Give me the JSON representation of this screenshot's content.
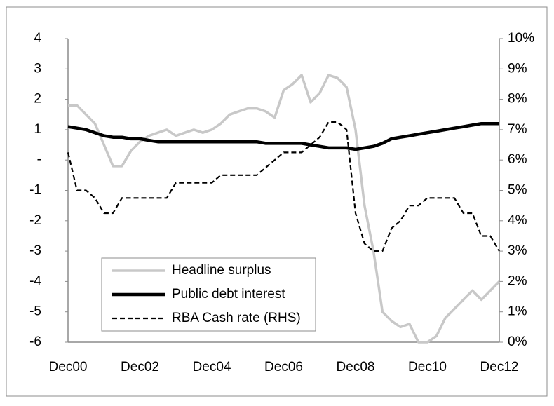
{
  "chart_data": {
    "type": "line",
    "categories": [
      "Dec00",
      null,
      null,
      null,
      null,
      null,
      null,
      null,
      "Dec02",
      null,
      null,
      null,
      null,
      null,
      null,
      null,
      "Dec04",
      null,
      null,
      null,
      null,
      null,
      null,
      null,
      "Dec06",
      null,
      null,
      null,
      null,
      null,
      null,
      null,
      "Dec08",
      null,
      null,
      null,
      null,
      null,
      null,
      null,
      "Dec10",
      null,
      null,
      null,
      null,
      null,
      null,
      null,
      "Dec12"
    ],
    "ylim": [
      -6,
      4
    ],
    "yticks": [
      -6,
      -5,
      -4,
      -3,
      -2,
      -1,
      {
        "value": 0,
        "label": "-"
      },
      1,
      2,
      3,
      4
    ],
    "y2lim": [
      0,
      10
    ],
    "y2ticks": [
      {
        "value": 0,
        "label": "0%"
      },
      {
        "value": 1,
        "label": "1%"
      },
      {
        "value": 2,
        "label": "2%"
      },
      {
        "value": 3,
        "label": "3%"
      },
      {
        "value": 4,
        "label": "4%"
      },
      {
        "value": 5,
        "label": "5%"
      },
      {
        "value": 6,
        "label": "6%"
      },
      {
        "value": 7,
        "label": "7%"
      },
      {
        "value": 8,
        "label": "8%"
      },
      {
        "value": 9,
        "label": "9%"
      },
      {
        "value": 10,
        "label": "10%"
      }
    ],
    "grid": false,
    "legend": "lower left",
    "series": [
      {
        "name": "Headline surplus",
        "color": "#c8c8c8",
        "line_width": 3.5,
        "line_style": "solid",
        "values": [
          1.8,
          1.8,
          1.5,
          1.2,
          0.5,
          -0.2,
          -0.2,
          0.3,
          0.6,
          0.8,
          0.9,
          1.0,
          0.8,
          0.9,
          1.0,
          0.9,
          1.0,
          1.2,
          1.5,
          1.6,
          1.7,
          1.7,
          1.6,
          1.4,
          2.3,
          2.5,
          2.8,
          1.9,
          2.2,
          2.8,
          2.7,
          2.4,
          1.0,
          -1.5,
          -3.0,
          -5.0,
          -5.3,
          -5.5,
          -5.4,
          -6.0,
          -6.0,
          -5.8,
          -5.2,
          -4.9,
          -4.6,
          -4.3,
          -4.6,
          -4.3,
          -4.0
        ]
      },
      {
        "name": "Public debt interest",
        "color": "#000000",
        "line_width": 4.5,
        "line_style": "solid",
        "values": [
          1.1,
          1.05,
          1.0,
          0.9,
          0.8,
          0.75,
          0.75,
          0.7,
          0.7,
          0.65,
          0.6,
          0.6,
          0.6,
          0.6,
          0.6,
          0.6,
          0.6,
          0.6,
          0.6,
          0.6,
          0.6,
          0.6,
          0.55,
          0.55,
          0.55,
          0.55,
          0.55,
          0.5,
          0.45,
          0.4,
          0.4,
          0.4,
          0.35,
          0.4,
          0.45,
          0.55,
          0.7,
          0.75,
          0.8,
          0.85,
          0.9,
          0.95,
          1.0,
          1.05,
          1.1,
          1.15,
          1.2,
          1.2,
          1.2
        ]
      },
      {
        "name": "RBA Cash rate (RHS)",
        "color": "#000000",
        "line_width": 2.2,
        "line_style": "dashed",
        "axis": "y2",
        "values": [
          6.25,
          5.0,
          5.0,
          4.75,
          4.25,
          4.25,
          4.75,
          4.75,
          4.75,
          4.75,
          4.75,
          4.75,
          5.25,
          5.25,
          5.25,
          5.25,
          5.25,
          5.5,
          5.5,
          5.5,
          5.5,
          5.5,
          5.75,
          6.0,
          6.25,
          6.25,
          6.25,
          6.5,
          6.75,
          7.25,
          7.25,
          7.0,
          4.25,
          3.25,
          3.0,
          3.0,
          3.75,
          4.0,
          4.5,
          4.5,
          4.75,
          4.75,
          4.75,
          4.75,
          4.25,
          4.25,
          3.5,
          3.5,
          3.0
        ]
      }
    ]
  }
}
